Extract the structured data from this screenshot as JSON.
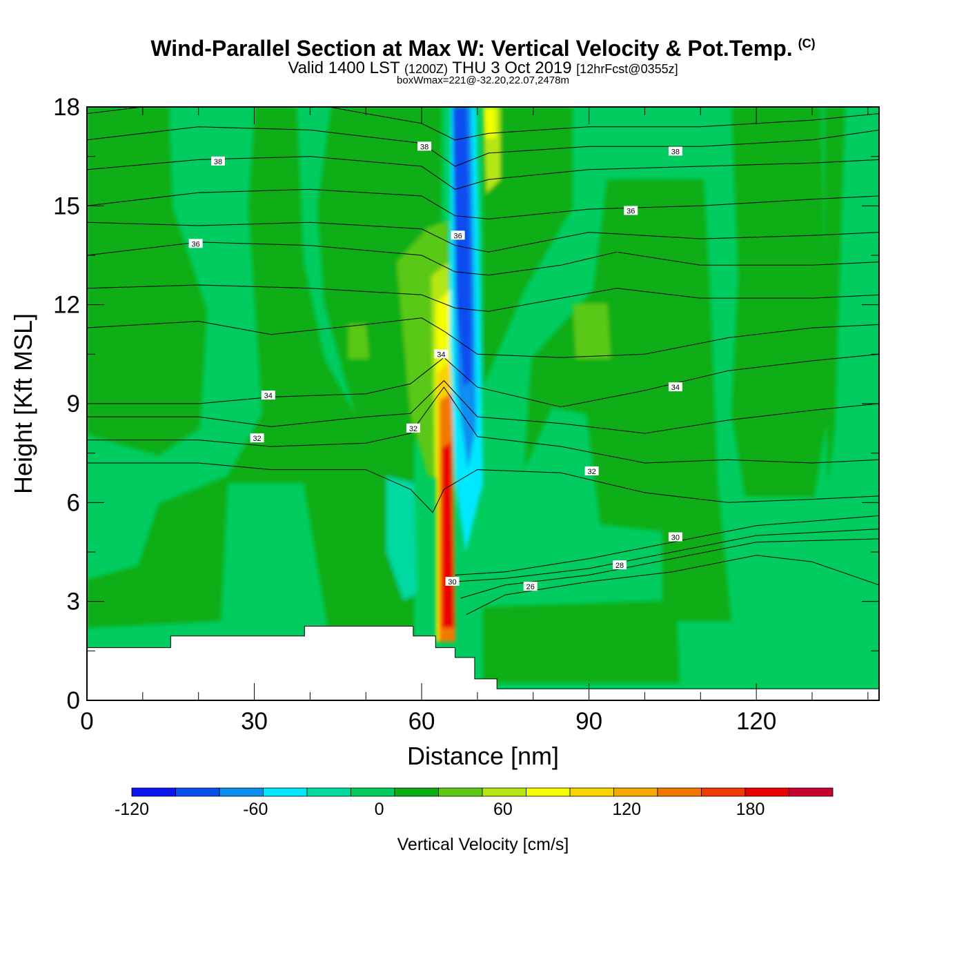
{
  "title": {
    "main": "Wind-Parallel Section at Max W: Vertical Velocity & Pot.Temp.",
    "copyright": "(C)",
    "valid_prefix": "Valid 1400 LST",
    "valid_zulu": "(1200Z)",
    "valid_date": "THU 3 Oct 2019",
    "forecast": "[12hrFcst@0355z]",
    "box": "boxWmax=221@-32.20,22.07,2478m"
  },
  "chart_data": {
    "type": "contour-section",
    "xlabel": "Distance [nm]",
    "ylabel": "Height [Kft MSL]",
    "xlim": [
      0,
      142
    ],
    "ylim": [
      0,
      18
    ],
    "x_ticks": [
      0,
      30,
      60,
      90,
      120
    ],
    "x_tick_labels": [
      "0",
      "30",
      "60",
      "90",
      "120"
    ],
    "y_ticks": [
      0,
      3,
      6,
      9,
      12,
      15,
      18
    ],
    "y_tick_labels": [
      "0",
      "3",
      "6",
      "9",
      "12",
      "15",
      "18"
    ],
    "colorbar": {
      "label": "Vertical Velocity [cm/s]",
      "min": -120,
      "max": 220,
      "ticks": [
        "-120",
        "-60",
        "0",
        "60",
        "120",
        "180"
      ],
      "tick_values": [
        -120,
        -60,
        0,
        60,
        120,
        180
      ],
      "colors": [
        "#0a14f0",
        "#0a4ef0",
        "#0a8ef0",
        "#00e8ff",
        "#00d9a0",
        "#00cc60",
        "#0aae14",
        "#5ac814",
        "#b4e614",
        "#f5ff00",
        "#fad200",
        "#f7a800",
        "#f37800",
        "#ef3c00",
        "#ea0000",
        "#c80030"
      ]
    },
    "terrain": [
      [
        0,
        1.6
      ],
      [
        15,
        1.6
      ],
      [
        15,
        1.95
      ],
      [
        39,
        1.95
      ],
      [
        39,
        2.25
      ],
      [
        58.5,
        2.25
      ],
      [
        58.5,
        1.95
      ],
      [
        62.5,
        1.95
      ],
      [
        62.5,
        1.6
      ],
      [
        66,
        1.6
      ],
      [
        66,
        1.3
      ],
      [
        69.5,
        1.3
      ],
      [
        69.5,
        0.65
      ],
      [
        73.5,
        0.65
      ],
      [
        73.5,
        0.35
      ],
      [
        142,
        0.35
      ]
    ],
    "theta_contours": [
      {
        "value": "38",
        "points": [
          [
            0,
            17.8
          ],
          [
            20,
            18.2
          ],
          [
            40,
            18.1
          ],
          [
            60,
            17.5
          ],
          [
            66,
            17.0
          ],
          [
            72,
            17.2
          ],
          [
            90,
            17.4
          ],
          [
            110,
            17.4
          ],
          [
            130,
            17.6
          ],
          [
            142,
            17.8
          ]
        ]
      },
      {
        "value": "38",
        "points": [
          [
            0,
            17.0
          ],
          [
            20,
            17.4
          ],
          [
            40,
            17.3
          ],
          [
            60,
            16.9
          ],
          [
            66,
            16.2
          ],
          [
            72,
            16.6
          ],
          [
            90,
            16.8
          ],
          [
            110,
            16.8
          ],
          [
            130,
            17.0
          ],
          [
            142,
            17.3
          ]
        ]
      },
      {
        "value": "38",
        "points": [
          [
            0,
            16.1
          ],
          [
            20,
            16.4
          ],
          [
            40,
            16.5
          ],
          [
            60,
            16.2
          ],
          [
            66,
            15.5
          ],
          [
            72,
            15.8
          ],
          [
            90,
            16.1
          ],
          [
            110,
            16.2
          ],
          [
            130,
            16.3
          ],
          [
            142,
            16.4
          ]
        ]
      },
      {
        "value": "36",
        "points": [
          [
            0,
            15.0
          ],
          [
            20,
            15.4
          ],
          [
            40,
            15.5
          ],
          [
            60,
            15.3
          ],
          [
            66,
            14.7
          ],
          [
            72,
            14.6
          ],
          [
            90,
            14.9
          ],
          [
            110,
            15.0
          ],
          [
            130,
            15.2
          ],
          [
            142,
            15.3
          ]
        ]
      },
      {
        "value": "36",
        "points": [
          [
            0,
            14.5
          ],
          [
            20,
            14.4
          ],
          [
            40,
            14.5
          ],
          [
            60,
            14.3
          ],
          [
            66,
            13.8
          ],
          [
            72,
            13.6
          ],
          [
            90,
            14.2
          ],
          [
            110,
            14.0
          ],
          [
            130,
            14.1
          ],
          [
            142,
            14.2
          ]
        ]
      },
      {
        "value": "36",
        "points": [
          [
            0,
            13.5
          ],
          [
            20,
            13.9
          ],
          [
            40,
            13.8
          ],
          [
            60,
            13.5
          ],
          [
            66,
            13.0
          ],
          [
            72,
            12.9
          ],
          [
            85,
            13.2
          ],
          [
            95,
            13.6
          ],
          [
            110,
            13.2
          ],
          [
            130,
            13.2
          ],
          [
            142,
            13.3
          ]
        ]
      },
      {
        "value": "36",
        "points": [
          [
            0,
            12.5
          ],
          [
            20,
            12.6
          ],
          [
            40,
            12.5
          ],
          [
            60,
            12.3
          ],
          [
            66,
            11.9
          ],
          [
            72,
            11.8
          ],
          [
            85,
            12.2
          ],
          [
            95,
            12.5
          ],
          [
            110,
            12.2
          ],
          [
            130,
            12.2
          ],
          [
            142,
            12.3
          ]
        ]
      },
      {
        "value": "34",
        "points": [
          [
            0,
            11.3
          ],
          [
            20,
            11.5
          ],
          [
            33,
            11.1
          ],
          [
            50,
            11.4
          ],
          [
            60,
            11.6
          ],
          [
            64,
            11.2
          ],
          [
            70,
            10.5
          ],
          [
            85,
            10.4
          ],
          [
            100,
            10.5
          ],
          [
            115,
            11.0
          ],
          [
            130,
            11.3
          ],
          [
            142,
            11.4
          ]
        ]
      },
      {
        "value": "34",
        "points": [
          [
            0,
            9.0
          ],
          [
            20,
            9.0
          ],
          [
            33,
            9.2
          ],
          [
            50,
            9.3
          ],
          [
            58,
            9.6
          ],
          [
            64,
            10.4
          ],
          [
            70,
            9.5
          ],
          [
            85,
            8.9
          ],
          [
            100,
            9.4
          ],
          [
            115,
            10.0
          ],
          [
            130,
            10.3
          ],
          [
            142,
            10.5
          ]
        ]
      },
      {
        "value": "32",
        "points": [
          [
            0,
            8.6
          ],
          [
            20,
            8.6
          ],
          [
            33,
            8.3
          ],
          [
            50,
            8.6
          ],
          [
            58,
            8.7
          ],
          [
            64,
            9.7
          ],
          [
            70,
            8.6
          ],
          [
            85,
            8.4
          ],
          [
            100,
            8.1
          ],
          [
            115,
            8.5
          ],
          [
            130,
            8.8
          ],
          [
            142,
            9.0
          ]
        ]
      },
      {
        "value": "32",
        "points": [
          [
            0,
            7.9
          ],
          [
            20,
            7.9
          ],
          [
            33,
            7.7
          ],
          [
            50,
            7.8
          ],
          [
            58,
            8.1
          ],
          [
            64,
            9.5
          ],
          [
            70,
            8.0
          ],
          [
            85,
            7.7
          ],
          [
            100,
            7.2
          ],
          [
            115,
            7.3
          ],
          [
            130,
            7.2
          ],
          [
            142,
            7.3
          ]
        ]
      },
      {
        "value": "32",
        "points": [
          [
            0,
            7.2
          ],
          [
            20,
            7.2
          ],
          [
            33,
            7.0
          ],
          [
            50,
            7.0
          ],
          [
            58,
            6.4
          ],
          [
            62,
            5.7
          ],
          [
            64,
            6.4
          ],
          [
            70,
            7.0
          ],
          [
            85,
            6.9
          ],
          [
            100,
            6.3
          ],
          [
            115,
            6.0
          ],
          [
            130,
            6.1
          ],
          [
            142,
            6.2
          ]
        ]
      },
      {
        "value": "30",
        "points": [
          [
            66,
            3.8
          ],
          [
            75,
            3.9
          ],
          [
            90,
            4.3
          ],
          [
            105,
            4.8
          ],
          [
            120,
            5.3
          ],
          [
            142,
            5.6
          ]
        ]
      },
      {
        "value": "30",
        "points": [
          [
            66,
            3.6
          ],
          [
            75,
            3.7
          ],
          [
            90,
            4.0
          ],
          [
            105,
            4.5
          ],
          [
            120,
            5.0
          ],
          [
            142,
            5.2
          ]
        ]
      },
      {
        "value": "28",
        "points": [
          [
            67,
            3.1
          ],
          [
            75,
            3.5
          ],
          [
            90,
            3.8
          ],
          [
            105,
            4.3
          ],
          [
            120,
            4.8
          ],
          [
            142,
            4.9
          ]
        ]
      },
      {
        "value": "26",
        "points": [
          [
            68,
            2.6
          ],
          [
            75,
            3.2
          ],
          [
            90,
            3.6
          ],
          [
            105,
            3.9
          ],
          [
            120,
            4.4
          ],
          [
            130,
            4.2
          ],
          [
            142,
            3.5
          ]
        ]
      }
    ],
    "contour_labels": [
      {
        "text": "38",
        "x": 23.5,
        "y": 16.35
      },
      {
        "text": "38",
        "x": 60.5,
        "y": 16.8
      },
      {
        "text": "38",
        "x": 105.5,
        "y": 16.65
      },
      {
        "text": "36",
        "x": 19.5,
        "y": 13.85
      },
      {
        "text": "36",
        "x": 66.5,
        "y": 14.1
      },
      {
        "text": "36",
        "x": 97.5,
        "y": 14.85
      },
      {
        "text": "34",
        "x": 32.5,
        "y": 9.25
      },
      {
        "text": "34",
        "x": 63.5,
        "y": 10.5
      },
      {
        "text": "34",
        "x": 105.5,
        "y": 9.5
      },
      {
        "text": "32",
        "x": 30.5,
        "y": 7.95
      },
      {
        "text": "32",
        "x": 58.5,
        "y": 8.25
      },
      {
        "text": "32",
        "x": 90.5,
        "y": 6.95
      },
      {
        "text": "30",
        "x": 105.5,
        "y": 4.95
      },
      {
        "text": "30",
        "x": 65.5,
        "y": 3.6
      },
      {
        "text": "28",
        "x": 95.5,
        "y": 4.1
      },
      {
        "text": "26",
        "x": 79.5,
        "y": 3.45
      }
    ]
  }
}
